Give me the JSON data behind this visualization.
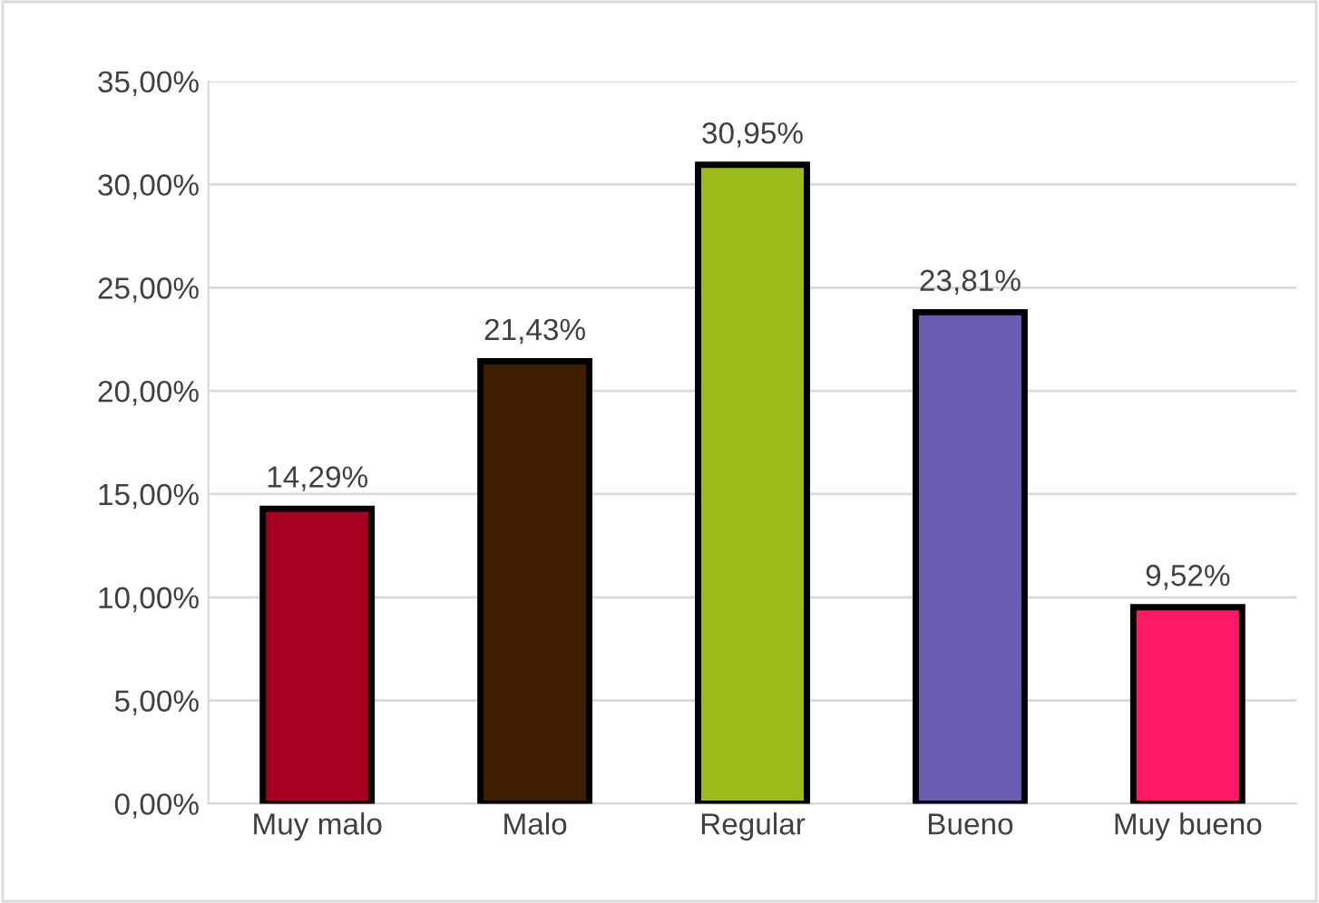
{
  "chart_data": {
    "type": "bar",
    "categories": [
      "Muy malo",
      "Malo",
      "Regular",
      "Bueno",
      "Muy bueno"
    ],
    "values": [
      14.29,
      21.43,
      30.95,
      23.81,
      9.52
    ],
    "colors": [
      "#a50021",
      "#3d1f00",
      "#9bbb1a",
      "#6a5cb0",
      "#ff1a66"
    ],
    "value_labels": [
      "14,29%",
      "21,43%",
      "30,95%",
      "23,81%",
      "9,52%"
    ],
    "ylim": [
      0,
      35
    ],
    "yticks": [
      {
        "value": 0,
        "label": "0,00%"
      },
      {
        "value": 5,
        "label": "5,00%"
      },
      {
        "value": 10,
        "label": "10,00%"
      },
      {
        "value": 15,
        "label": "15,00%"
      },
      {
        "value": 20,
        "label": "20,00%"
      },
      {
        "value": 25,
        "label": "25,00%"
      },
      {
        "value": 30,
        "label": "30,00%"
      },
      {
        "value": 35,
        "label": "35,00%"
      }
    ],
    "grid": "y",
    "legend": false
  }
}
